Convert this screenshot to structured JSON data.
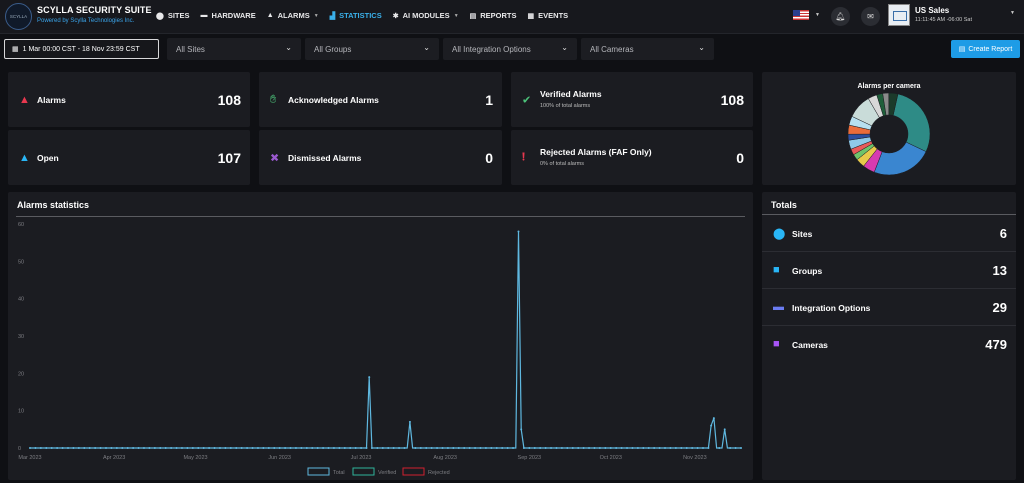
{
  "header": {
    "logo_text": "SCYLLA",
    "title": "SCYLLA SECURITY SUITE",
    "subtitle": "Powered by Scylla Technologies Inc.",
    "nav": [
      {
        "label": "SITES",
        "icon": "map-pin-icon"
      },
      {
        "label": "HARDWARE",
        "icon": "car-icon"
      },
      {
        "label": "ALARMS",
        "icon": "bell-icon"
      },
      {
        "label": "STATISTICS",
        "icon": "bar-chart-icon"
      },
      {
        "label": "AI MODULES",
        "icon": "brain-icon"
      },
      {
        "label": "REPORTS",
        "icon": "report-icon"
      },
      {
        "label": "EVENTS",
        "icon": "calendar-icon"
      }
    ],
    "account": {
      "name": "US Sales",
      "time": "11:11:45 AM -06:00 Sat"
    }
  },
  "filters": {
    "date_range": "1 Mar 00:00 CST - 18 Nov 23:59 CST",
    "sites": "All Sites",
    "groups": "All Groups",
    "integration": "All Integration Options",
    "cameras": "All Cameras",
    "create_report": "Create Report"
  },
  "kpis": {
    "alarms": {
      "label": "Alarms",
      "value": "108",
      "color": "#e8384f"
    },
    "acknowledged": {
      "label": "Acknowledged Alarms",
      "value": "1",
      "color": "#4cc37a"
    },
    "verified": {
      "label": "Verified Alarms",
      "sub": "100% of total alarms",
      "value": "108",
      "color": "#4cc37a"
    },
    "open": {
      "label": "Open",
      "value": "107",
      "color": "#29b6f6"
    },
    "dismissed": {
      "label": "Dismissed Alarms",
      "value": "0",
      "color": "#9b59d0"
    },
    "rejected": {
      "label": "Rejected Alarms (FAF Only)",
      "sub": "0% of total alarms",
      "value": "0",
      "color": "#e8384f"
    }
  },
  "pie": {
    "title": "Alarms per camera"
  },
  "stats": {
    "title": "Alarms statistics"
  },
  "totals": {
    "title": "Totals",
    "rows": [
      {
        "label": "Sites",
        "value": "6",
        "icon": "map-pin-icon",
        "color": "#29b6f6"
      },
      {
        "label": "Groups",
        "value": "13",
        "icon": "folder-icon",
        "color": "#29b6f6"
      },
      {
        "label": "Integration Options",
        "value": "29",
        "icon": "server-icon",
        "color": "#6b7cf2"
      },
      {
        "label": "Cameras",
        "value": "479",
        "icon": "video-camera-icon",
        "color": "#a855f7"
      }
    ]
  },
  "chart_data": [
    {
      "type": "line",
      "ylim": [
        0,
        60
      ],
      "yticks": [
        0,
        10,
        20,
        30,
        40,
        50,
        60
      ],
      "x_labels": [
        "Mar 2023",
        "Apr 2023",
        "May 2023",
        "Jun 2023",
        "Jul 2023",
        "Aug 2023",
        "Sep 2023",
        "Oct 2023",
        "Nov 2023"
      ],
      "x_start": "2023-03-01",
      "x_end": "2023-11-18",
      "series": [
        {
          "name": "Total",
          "color": "#5fb8e0",
          "points": [
            [
              "2023-07-04",
              19
            ],
            [
              "2023-07-19",
              7
            ],
            [
              "2023-08-28",
              58
            ],
            [
              "2023-08-29",
              5
            ],
            [
              "2023-11-07",
              6
            ],
            [
              "2023-11-08",
              8
            ],
            [
              "2023-11-12",
              5
            ]
          ]
        },
        {
          "name": "Verified",
          "color": "#2fb39a",
          "points": []
        },
        {
          "name": "Rejected",
          "color": "#d0202f",
          "points": []
        }
      ]
    },
    {
      "type": "pie",
      "title": "Alarms per camera",
      "slices": [
        {
          "value": 24,
          "color": "#2e8b86"
        },
        {
          "value": 20,
          "color": "#3a86d0"
        },
        {
          "value": 4,
          "color": "#d63bb0"
        },
        {
          "value": 3,
          "color": "#e8c94a"
        },
        {
          "value": 2,
          "color": "#6ec36b"
        },
        {
          "value": 2,
          "color": "#e85a5a"
        },
        {
          "value": 3,
          "color": "#8fc9e8"
        },
        {
          "value": 2,
          "color": "#2c4fa0"
        },
        {
          "value": 3,
          "color": "#ea6c3a"
        },
        {
          "value": 3,
          "color": "#b7e0ef"
        },
        {
          "value": 8,
          "color": "#c9dcd9"
        },
        {
          "value": 3,
          "color": "#d8d8d8"
        },
        {
          "value": 2,
          "color": "#1f5e3a"
        },
        {
          "value": 2,
          "color": "#8a8a8a"
        },
        {
          "value": 3,
          "color": "#1b3a2a"
        }
      ]
    }
  ]
}
